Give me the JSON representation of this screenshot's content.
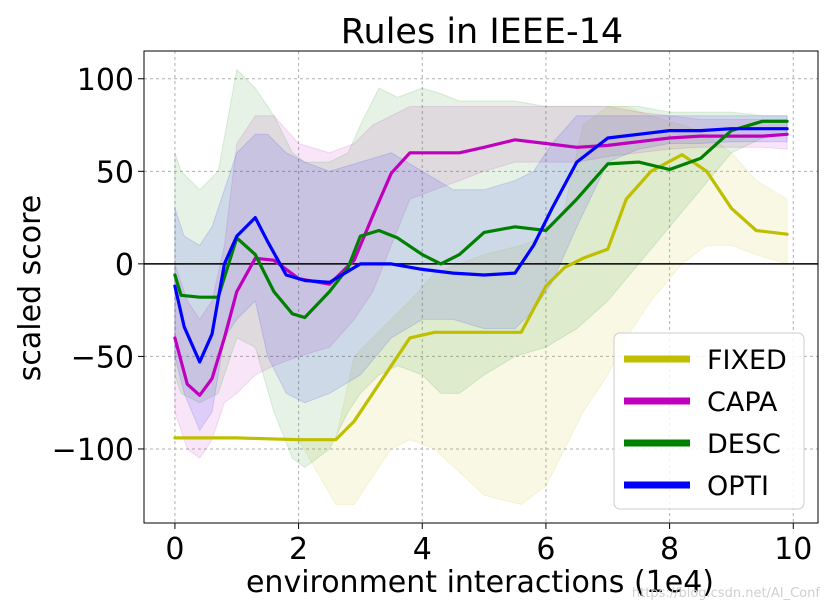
{
  "chart_data": {
    "type": "line",
    "title": "Rules in IEEE-14",
    "xlabel": "environment interactions (1e4)",
    "ylabel": "scaled score",
    "xlim": [
      -0.5,
      10.4
    ],
    "ylim": [
      -140,
      115
    ],
    "xticks": [
      0,
      2,
      4,
      6,
      8,
      10
    ],
    "xtick_labels": [
      "0",
      "2",
      "4",
      "6",
      "8",
      "10"
    ],
    "yticks": [
      -100,
      -50,
      0,
      50,
      100
    ],
    "ytick_labels": [
      "−100",
      "−50",
      "0",
      "50",
      "100"
    ],
    "grid": true,
    "hline": 0,
    "legend_position": "lower-right",
    "series": [
      {
        "name": "FIXED",
        "color": "#bfbf00",
        "x": [
          0,
          1,
          2,
          2.6,
          2.9,
          3.5,
          3.8,
          4.2,
          5,
          5.6,
          6,
          6.3,
          6.6,
          7,
          7.3,
          7.7,
          8.2,
          8.6,
          9,
          9.4,
          9.9
        ],
        "y": [
          -94,
          -94,
          -95,
          -95,
          -85,
          -55,
          -40,
          -37,
          -37,
          -37,
          -12,
          -2,
          3,
          8,
          35,
          50,
          59,
          50,
          30,
          18,
          16
        ],
        "band_lower": [
          -94,
          -94,
          -95,
          -130,
          -130,
          -100,
          -95,
          -100,
          -125,
          -130,
          -120,
          -100,
          -80,
          -60,
          -40,
          -20,
          0,
          10,
          10,
          5,
          0
        ],
        "band_upper": [
          -94,
          -94,
          -95,
          -95,
          -50,
          -30,
          -20,
          -5,
          5,
          10,
          15,
          30,
          75,
          85,
          85,
          80,
          75,
          70,
          60,
          45,
          35
        ]
      },
      {
        "name": "CAPA",
        "color": "#bf00bf",
        "x": [
          0,
          0.2,
          0.4,
          0.6,
          0.8,
          1.0,
          1.3,
          1.6,
          2.0,
          2.5,
          2.9,
          3.2,
          3.5,
          3.8,
          4.2,
          4.6,
          5,
          5.5,
          6,
          6.5,
          7,
          7.5,
          8,
          8.5,
          9,
          9.5,
          9.9
        ],
        "y": [
          -40,
          -65,
          -71,
          -62,
          -40,
          -15,
          3,
          2,
          -8,
          -11,
          2,
          26,
          49,
          60,
          60,
          60,
          63,
          67,
          65,
          63,
          64,
          66,
          68,
          69,
          69,
          69,
          70
        ],
        "band_lower": [
          -80,
          -100,
          -105,
          -95,
          -75,
          -70,
          -60,
          -55,
          -50,
          -45,
          -30,
          -15,
          10,
          35,
          40,
          45,
          50,
          55,
          55,
          55,
          58,
          60,
          62,
          63,
          63,
          63,
          62
        ],
        "band_upper": [
          0,
          -20,
          -30,
          -20,
          10,
          65,
          80,
          80,
          65,
          60,
          65,
          75,
          80,
          85,
          85,
          85,
          85,
          85,
          85,
          85,
          85,
          82,
          80,
          78,
          78,
          78,
          78
        ]
      },
      {
        "name": "DESC",
        "color": "#008000",
        "x": [
          0,
          0.1,
          0.4,
          0.7,
          1.0,
          1.3,
          1.6,
          1.9,
          2.1,
          2.5,
          2.8,
          3.0,
          3.3,
          3.6,
          4.0,
          4.3,
          4.6,
          5.0,
          5.5,
          6.0,
          6.5,
          7.0,
          7.5,
          8.0,
          8.5,
          9.0,
          9.5,
          9.9
        ],
        "y": [
          -6,
          -17,
          -18,
          -18,
          14,
          5,
          -15,
          -27,
          -29,
          -15,
          -2,
          15,
          18,
          14,
          5,
          0,
          5,
          17,
          20,
          18,
          35,
          54,
          55,
          51,
          57,
          72,
          77,
          77
        ],
        "band_lower": [
          -60,
          -70,
          -75,
          -70,
          -40,
          -45,
          -80,
          -105,
          -110,
          -100,
          -80,
          -70,
          -60,
          -55,
          -60,
          -70,
          -70,
          -60,
          -50,
          -45,
          -35,
          -20,
          0,
          20,
          40,
          60,
          68,
          70
        ],
        "band_upper": [
          60,
          50,
          40,
          50,
          105,
          95,
          80,
          60,
          55,
          55,
          60,
          75,
          95,
          90,
          95,
          92,
          88,
          88,
          88,
          85,
          85,
          85,
          85,
          82,
          82,
          82,
          80,
          80
        ]
      },
      {
        "name": "OPTI",
        "color": "#0000ff",
        "x": [
          0,
          0.15,
          0.4,
          0.6,
          0.8,
          1.0,
          1.3,
          1.5,
          1.8,
          2.1,
          2.5,
          3.0,
          3.5,
          4.0,
          4.5,
          5.0,
          5.5,
          5.8,
          6.1,
          6.5,
          7.0,
          7.5,
          8.0,
          8.5,
          9.0,
          9.5,
          9.9
        ],
        "y": [
          -12,
          -34,
          -53,
          -38,
          0,
          15,
          25,
          12,
          -6,
          -9,
          -10,
          0,
          0,
          -3,
          -5,
          -6,
          -5,
          10,
          30,
          55,
          68,
          70,
          72,
          72,
          73,
          73,
          73
        ],
        "band_lower": [
          -50,
          -70,
          -90,
          -80,
          -40,
          -30,
          -20,
          -50,
          -70,
          -75,
          -70,
          -60,
          -40,
          -30,
          -30,
          -35,
          -35,
          -25,
          -10,
          20,
          55,
          62,
          65,
          65,
          66,
          66,
          66
        ],
        "band_upper": [
          30,
          15,
          10,
          20,
          40,
          60,
          70,
          70,
          60,
          55,
          50,
          55,
          60,
          50,
          40,
          40,
          45,
          50,
          65,
          80,
          80,
          80,
          80,
          80,
          80,
          80,
          80
        ]
      }
    ]
  },
  "watermark": "https://blog.csdn.net/AI_Conf"
}
